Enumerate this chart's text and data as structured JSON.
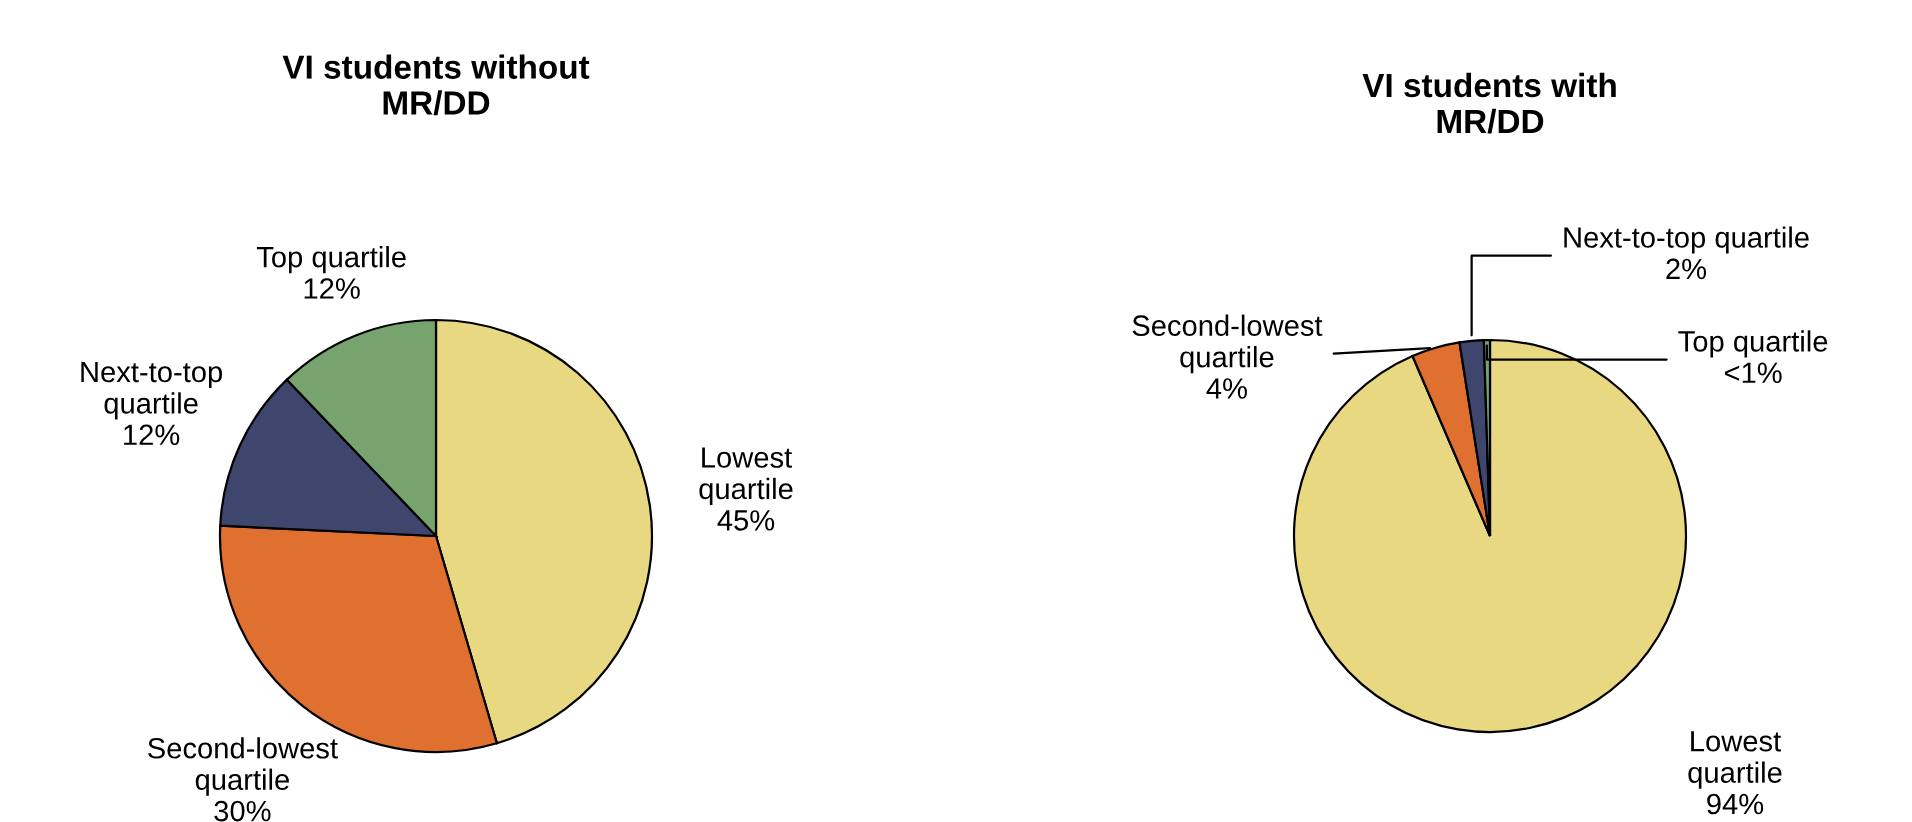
{
  "chart_data": [
    {
      "type": "pie",
      "title": "VI students without\nMR/DD",
      "categories": [
        "Lowest quartile",
        "Second-lowest quartile",
        "Next-to-top quartile",
        "Top quartile"
      ],
      "values": [
        45,
        30,
        12,
        12
      ],
      "value_labels": [
        "45%",
        "30%",
        "12%",
        "12%"
      ],
      "colors": [
        "#e8d882",
        "#e07030",
        "#3f466e",
        "#77a36f"
      ]
    },
    {
      "type": "pie",
      "title": "VI students with\nMR/DD",
      "categories": [
        "Lowest quartile",
        "Second-lowest quartile",
        "Next-to-top quartile",
        "Top quartile"
      ],
      "values": [
        94,
        4,
        2,
        0.5
      ],
      "value_labels": [
        "94%",
        "4%",
        "2%",
        "<1%"
      ],
      "colors": [
        "#e8d882",
        "#e07030",
        "#3f466e",
        "#77a36f"
      ]
    }
  ]
}
